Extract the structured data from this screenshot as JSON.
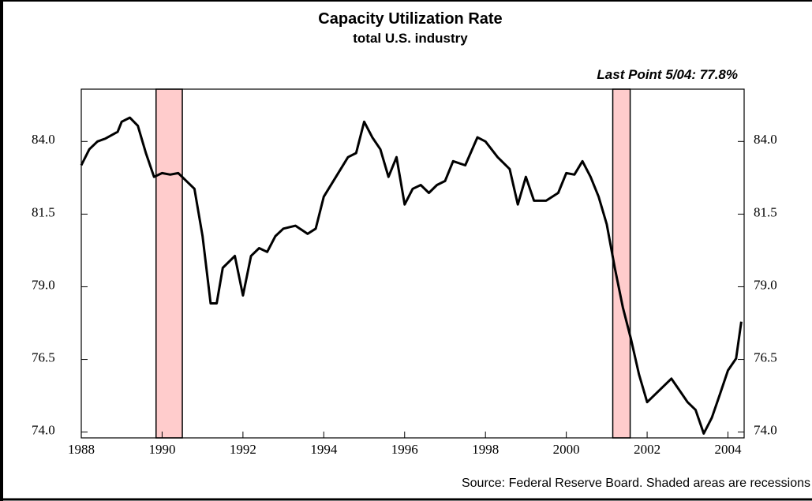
{
  "chart_data": {
    "type": "line",
    "title": "Capacity Utilization Rate",
    "subtitle": "total U.S. industry",
    "annotation": "Last Point 5/04: 77.8%",
    "source": "Source: Federal Reserve Board.  Shaded areas are recessions",
    "x": [
      1988.0,
      1988.2,
      1988.4,
      1988.6,
      1988.9,
      1989.0,
      1989.2,
      1989.4,
      1989.6,
      1989.8,
      1990.0,
      1990.2,
      1990.4,
      1990.6,
      1990.8,
      1991.0,
      1991.2,
      1991.35,
      1991.5,
      1991.8,
      1992.0,
      1992.2,
      1992.4,
      1992.6,
      1992.8,
      1993.0,
      1993.3,
      1993.6,
      1993.8,
      1994.0,
      1994.3,
      1994.6,
      1994.8,
      1995.0,
      1995.2,
      1995.4,
      1995.6,
      1995.8,
      1996.0,
      1996.2,
      1996.4,
      1996.6,
      1996.8,
      1997.0,
      1997.2,
      1997.5,
      1997.8,
      1998.0,
      1998.3,
      1998.6,
      1998.8,
      1999.0,
      1999.2,
      1999.5,
      1999.8,
      2000.0,
      2000.2,
      2000.4,
      2000.6,
      2000.8,
      2001.0,
      2001.2,
      2001.4,
      2001.6,
      2001.8,
      2002.0,
      2002.2,
      2002.4,
      2002.6,
      2002.8,
      2003.0,
      2003.2,
      2003.4,
      2003.6,
      2003.8,
      2004.0,
      2004.2,
      2004.33
    ],
    "series": [
      {
        "name": "Capacity Utilization Rate",
        "color": "#000000",
        "values": [
          83.18,
          83.73,
          84.0,
          84.1,
          84.33,
          84.68,
          84.82,
          84.54,
          83.59,
          82.78,
          82.91,
          82.86,
          82.91,
          82.64,
          82.37,
          80.74,
          78.43,
          78.43,
          79.65,
          80.06,
          78.7,
          80.06,
          80.33,
          80.2,
          80.74,
          81.0,
          81.1,
          80.82,
          81.0,
          82.1,
          82.78,
          83.46,
          83.6,
          84.68,
          84.14,
          83.73,
          82.78,
          83.46,
          81.83,
          82.37,
          82.5,
          82.23,
          82.5,
          82.64,
          83.32,
          83.18,
          84.14,
          84.0,
          83.46,
          83.05,
          81.83,
          82.78,
          81.96,
          81.96,
          82.23,
          82.91,
          82.86,
          83.32,
          82.78,
          82.1,
          81.15,
          79.65,
          78.29,
          77.2,
          75.98,
          75.03,
          75.3,
          75.57,
          75.84,
          75.44,
          75.03,
          74.76,
          73.95,
          74.49,
          75.3,
          76.12,
          76.53,
          77.8
        ]
      }
    ],
    "recessions": [
      [
        1989.85,
        1990.5
      ],
      [
        2001.15,
        2001.58
      ]
    ],
    "recession_color": "#ffcccc",
    "xlim": [
      1988,
      2004.4
    ],
    "xticks": [
      1988,
      1990,
      1992,
      1994,
      1996,
      1998,
      2000,
      2002,
      2004
    ],
    "ylim": [
      73.8,
      85.8
    ],
    "yticks": [
      {
        "value": 74,
        "label": "74.0"
      },
      {
        "value": 76.5,
        "label": "76.5"
      },
      {
        "value": 79,
        "label": "79.0"
      },
      {
        "value": 81.5,
        "label": "81.5"
      },
      {
        "value": 84,
        "label": "84.0"
      }
    ],
    "y2lim": [
      73.8,
      85.8
    ],
    "y2ticks": [
      {
        "value": 74,
        "label": "74.0"
      },
      {
        "value": 76.5,
        "label": "76.5"
      },
      {
        "value": 79,
        "label": "79.0"
      },
      {
        "value": 81.5,
        "label": "81.5"
      },
      {
        "value": 84,
        "label": "84.0"
      }
    ]
  }
}
